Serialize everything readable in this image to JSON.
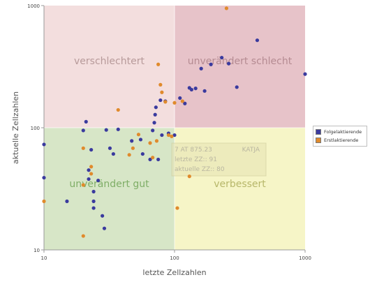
{
  "chart_data": {
    "type": "scatter",
    "title": "",
    "xlabel": "letzte Zellzahlen",
    "ylabel": "aktuelle Zellzahlen",
    "xscale": "log",
    "yscale": "log",
    "xlim": [
      10,
      1000
    ],
    "ylim": [
      10,
      1000
    ],
    "x_ticks": [
      "10",
      "100",
      "1000"
    ],
    "y_ticks": [
      "10",
      "100",
      "1000"
    ],
    "grid": false,
    "legend_position": "right",
    "threshold": 100,
    "quadrants": {
      "top_left": {
        "label": "verschlechtert",
        "color": "#f3dede"
      },
      "top_right": {
        "label": "unverändert schlecht",
        "color": "#e7c3c9"
      },
      "bottom_left": {
        "label": "unverändert gut",
        "color": "#d7e6c7"
      },
      "bottom_right": {
        "label": "verbessert",
        "color": "#f6f5c7"
      }
    },
    "series": [
      {
        "name": "Folgelaktierende",
        "color": "#3a3a9e",
        "points": [
          [
            10,
            73
          ],
          [
            10,
            39
          ],
          [
            15,
            25
          ],
          [
            20,
            95
          ],
          [
            21,
            112
          ],
          [
            22,
            45
          ],
          [
            23,
            66
          ],
          [
            22,
            38
          ],
          [
            24,
            30
          ],
          [
            24,
            25
          ],
          [
            24,
            22
          ],
          [
            26,
            37
          ],
          [
            28,
            19
          ],
          [
            29,
            15
          ],
          [
            30,
            96
          ],
          [
            32,
            68
          ],
          [
            34,
            61
          ],
          [
            37,
            97
          ],
          [
            47,
            78
          ],
          [
            55,
            80
          ],
          [
            57,
            61
          ],
          [
            65,
            55
          ],
          [
            68,
            95
          ],
          [
            70,
            110
          ],
          [
            71,
            128
          ],
          [
            72,
            147
          ],
          [
            75,
            55
          ],
          [
            78,
            168
          ],
          [
            80,
            87
          ],
          [
            85,
            165
          ],
          [
            90,
            90
          ],
          [
            100,
            87
          ],
          [
            110,
            175
          ],
          [
            120,
            158
          ],
          [
            130,
            212
          ],
          [
            135,
            205
          ],
          [
            145,
            210
          ],
          [
            160,
            305
          ],
          [
            170,
            200
          ],
          [
            190,
            330
          ],
          [
            230,
            375
          ],
          [
            260,
            335
          ],
          [
            300,
            215
          ],
          [
            430,
            520
          ],
          [
            1000,
            275
          ]
        ]
      },
      {
        "name": "Erstlaktierende",
        "color": "#e08a2c",
        "points": [
          [
            10,
            25
          ],
          [
            20,
            68
          ],
          [
            20,
            34
          ],
          [
            20,
            13
          ],
          [
            23,
            48
          ],
          [
            23,
            42
          ],
          [
            37,
            140
          ],
          [
            45,
            60
          ],
          [
            48,
            68
          ],
          [
            53,
            88
          ],
          [
            65,
            75
          ],
          [
            68,
            57
          ],
          [
            73,
            78
          ],
          [
            75,
            330
          ],
          [
            78,
            225
          ],
          [
            80,
            195
          ],
          [
            85,
            163
          ],
          [
            90,
            87
          ],
          [
            95,
            85
          ],
          [
            100,
            160
          ],
          [
            105,
            22
          ],
          [
            115,
            165
          ],
          [
            130,
            40
          ],
          [
            250,
            950
          ]
        ]
      }
    ],
    "tooltip": {
      "title": "7 AT 875.23",
      "name": "KATJA",
      "line1": "letzte ZZ:: 91",
      "line2": "aktuelle ZZ:: 80"
    }
  }
}
